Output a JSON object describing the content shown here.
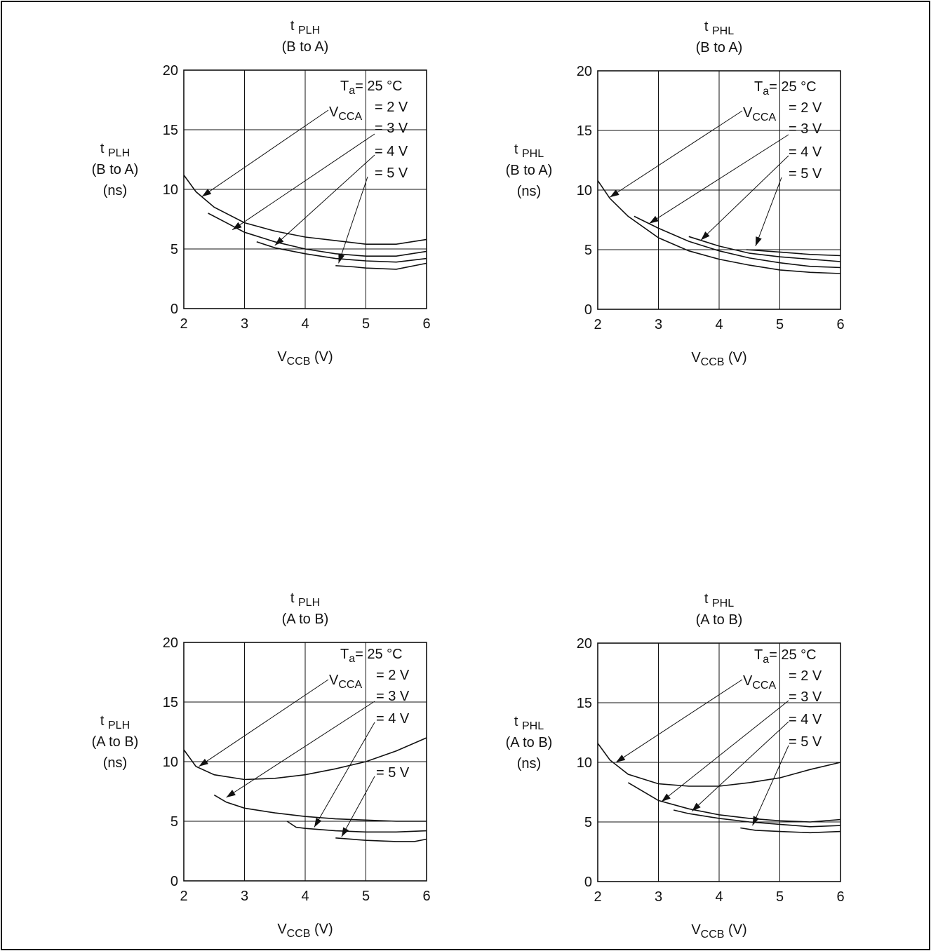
{
  "chart_data": [
    {
      "type": "line",
      "title": {
        "main": "t",
        "sub": "PLH",
        "line2": "(B to A)"
      },
      "ylabel": {
        "main": "t",
        "sub": "PLH",
        "line2": "(B to A)",
        "line3": "(ns)"
      },
      "xlabel": {
        "main": "V",
        "sub": "CCB",
        "rest": " (V)"
      },
      "xlim": [
        2,
        6
      ],
      "ylim": [
        0,
        20
      ],
      "xticks": [
        "2",
        "3",
        "4",
        "5",
        "6"
      ],
      "yticks": [
        "0",
        "5",
        "10",
        "15",
        "20"
      ],
      "grid": true,
      "legend_head": {
        "main": "T",
        "sub": "a",
        "rest": "= 25 °C"
      },
      "legend_var": {
        "main": "V",
        "sub": "CCA"
      },
      "series": [
        {
          "name": "= 2 V",
          "x": [
            2.0,
            2.2,
            2.5,
            3.0,
            3.5,
            4.0,
            4.5,
            5.0,
            5.5,
            6.0
          ],
          "y": [
            11.2,
            9.8,
            8.5,
            7.2,
            6.5,
            6.0,
            5.7,
            5.4,
            5.4,
            5.8
          ]
        },
        {
          "name": "= 3 V",
          "x": [
            2.4,
            2.7,
            3.0,
            3.5,
            4.0,
            4.5,
            5.0,
            5.5,
            6.0
          ],
          "y": [
            8.0,
            7.2,
            6.4,
            5.6,
            5.0,
            4.6,
            4.4,
            4.4,
            4.8
          ]
        },
        {
          "name": "= 4 V",
          "x": [
            3.2,
            3.5,
            4.0,
            4.5,
            5.0,
            5.5,
            6.0
          ],
          "y": [
            5.6,
            5.1,
            4.6,
            4.2,
            4.0,
            3.9,
            4.2
          ]
        },
        {
          "name": "= 5 V",
          "x": [
            4.5,
            4.8,
            5.0,
            5.5,
            6.0
          ],
          "y": [
            3.6,
            3.5,
            3.4,
            3.3,
            3.8
          ]
        }
      ]
    },
    {
      "type": "line",
      "title": {
        "main": "t",
        "sub": "PHL",
        "line2": "(B to A)"
      },
      "ylabel": {
        "main": "t",
        "sub": "PHL",
        "line2": "(B to A)",
        "line3": "(ns)"
      },
      "xlabel": {
        "main": "V",
        "sub": "CCB",
        "rest": " (V)"
      },
      "xlim": [
        2,
        6
      ],
      "ylim": [
        0,
        20
      ],
      "xticks": [
        "2",
        "3",
        "4",
        "5",
        "6"
      ],
      "yticks": [
        "0",
        "5",
        "10",
        "15",
        "20"
      ],
      "grid": true,
      "legend_head": {
        "main": "T",
        "sub": "a",
        "rest": "= 25 °C"
      },
      "legend_var": {
        "main": "V",
        "sub": "CCA"
      },
      "series": [
        {
          "name": "= 2 V",
          "x": [
            2.0,
            2.2,
            2.5,
            3.0,
            3.5,
            4.0,
            4.5,
            5.0,
            5.5,
            6.0
          ],
          "y": [
            10.8,
            9.3,
            7.8,
            6.0,
            4.9,
            4.2,
            3.7,
            3.3,
            3.1,
            3.0
          ]
        },
        {
          "name": "= 3 V",
          "x": [
            2.6,
            3.0,
            3.5,
            4.0,
            4.5,
            5.0,
            5.5,
            6.0
          ],
          "y": [
            7.8,
            6.8,
            5.7,
            4.9,
            4.3,
            3.9,
            3.6,
            3.5
          ]
        },
        {
          "name": "= 4 V",
          "x": [
            3.5,
            4.0,
            4.5,
            5.0,
            5.5,
            6.0
          ],
          "y": [
            6.1,
            5.3,
            4.7,
            4.4,
            4.2,
            4.0
          ]
        },
        {
          "name": "= 5 V",
          "x": [
            4.45,
            5.0,
            5.5,
            6.0
          ],
          "y": [
            5.0,
            4.8,
            4.6,
            4.5
          ]
        }
      ]
    },
    {
      "type": "line",
      "title": {
        "main": "t",
        "sub": "PLH",
        "line2": "(A to B)"
      },
      "ylabel": {
        "main": "t",
        "sub": "PLH",
        "line2": "(A to B)",
        "line3": "(ns)"
      },
      "xlabel": {
        "main": "V",
        "sub": "CCB",
        "rest": " (V)"
      },
      "xlim": [
        2,
        6
      ],
      "ylim": [
        0,
        20
      ],
      "xticks": [
        "2",
        "3",
        "4",
        "5",
        "6"
      ],
      "yticks": [
        "0",
        "5",
        "10",
        "15",
        "20"
      ],
      "grid": true,
      "legend_head": {
        "main": "T",
        "sub": "a",
        "rest": "= 25 °C"
      },
      "legend_var": {
        "main": "V",
        "sub": "CCA"
      },
      "series": [
        {
          "name": "= 2 V",
          "x": [
            2.0,
            2.2,
            2.5,
            3.0,
            3.5,
            4.0,
            4.5,
            5.0,
            5.5,
            6.0
          ],
          "y": [
            11.0,
            9.6,
            8.9,
            8.5,
            8.6,
            8.9,
            9.4,
            10.0,
            10.9,
            12.0
          ]
        },
        {
          "name": "= 3 V",
          "x": [
            2.5,
            2.7,
            3.0,
            3.5,
            4.0,
            4.5,
            5.0,
            5.5,
            6.0
          ],
          "y": [
            7.2,
            6.6,
            6.1,
            5.7,
            5.4,
            5.2,
            5.1,
            5.0,
            5.0
          ]
        },
        {
          "name": "= 4 V",
          "x": [
            3.7,
            3.85,
            4.0,
            4.5,
            5.0,
            5.5,
            6.0
          ],
          "y": [
            5.0,
            4.5,
            4.4,
            4.2,
            4.1,
            4.1,
            4.2
          ]
        },
        {
          "name": "= 5 V",
          "x": [
            4.5,
            5.0,
            5.5,
            5.8,
            6.0
          ],
          "y": [
            3.6,
            3.4,
            3.3,
            3.3,
            3.5
          ]
        }
      ]
    },
    {
      "type": "line",
      "title": {
        "main": "t",
        "sub": "PHL",
        "line2": "(A to B)"
      },
      "ylabel": {
        "main": "t",
        "sub": "PHL",
        "line2": "(A to B)",
        "line3": "(ns)"
      },
      "xlabel": {
        "main": "V",
        "sub": "CCB",
        "rest": " (V)"
      },
      "xlim": [
        2,
        6
      ],
      "ylim": [
        0,
        20
      ],
      "xticks": [
        "2",
        "3",
        "4",
        "5",
        "6"
      ],
      "yticks": [
        "0",
        "5",
        "10",
        "15",
        "20"
      ],
      "grid": true,
      "legend_head": {
        "main": "T",
        "sub": "a",
        "rest": "= 25 °C"
      },
      "legend_var": {
        "main": "V",
        "sub": "CCA"
      },
      "series": [
        {
          "name": "= 2 V",
          "x": [
            2.0,
            2.2,
            2.5,
            3.0,
            3.5,
            4.0,
            4.5,
            5.0,
            5.5,
            6.0
          ],
          "y": [
            11.6,
            10.2,
            9.0,
            8.2,
            8.0,
            8.0,
            8.3,
            8.7,
            9.4,
            10.0
          ]
        },
        {
          "name": "= 3 V",
          "x": [
            2.5,
            2.8,
            3.0,
            3.5,
            4.0,
            4.5,
            5.0,
            5.5,
            6.0
          ],
          "y": [
            8.3,
            7.4,
            6.8,
            6.1,
            5.6,
            5.3,
            5.1,
            5.0,
            5.2
          ]
        },
        {
          "name": "= 4 V",
          "x": [
            3.25,
            3.5,
            4.0,
            4.5,
            5.0,
            5.5,
            6.0
          ],
          "y": [
            6.0,
            5.7,
            5.3,
            5.0,
            4.8,
            4.6,
            4.7
          ]
        },
        {
          "name": "= 5 V",
          "x": [
            4.35,
            4.6,
            5.0,
            5.5,
            6.0
          ],
          "y": [
            4.5,
            4.3,
            4.2,
            4.1,
            4.2
          ]
        }
      ]
    }
  ]
}
